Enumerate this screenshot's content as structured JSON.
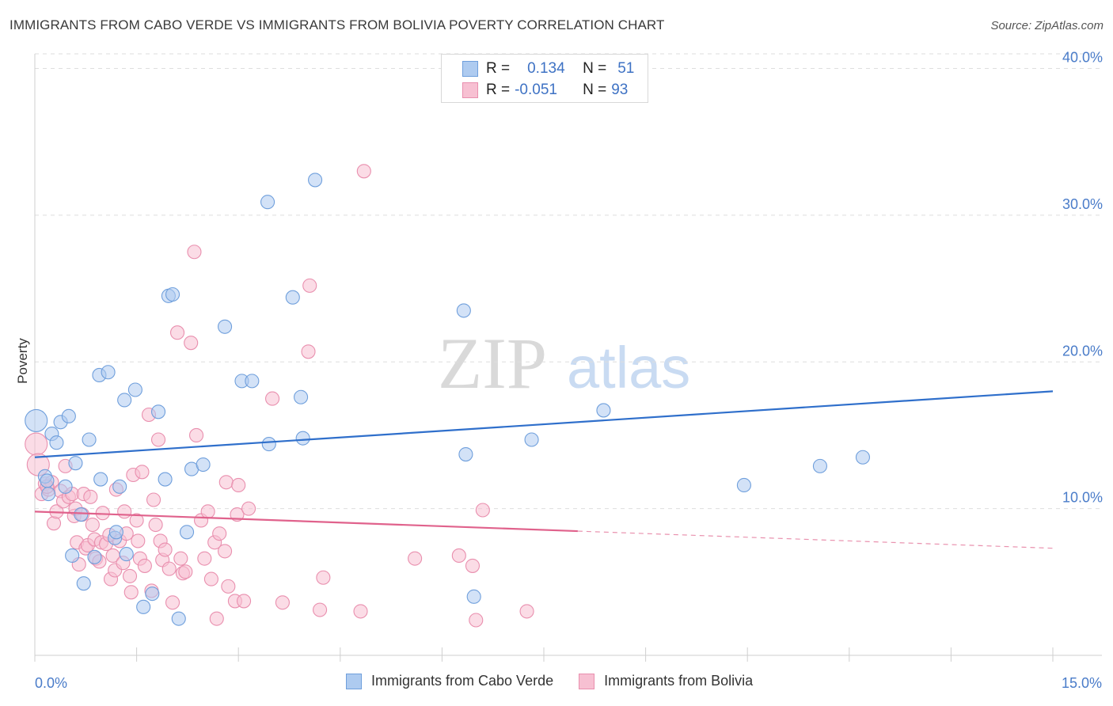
{
  "header": {
    "title": "IMMIGRANTS FROM CABO VERDE VS IMMIGRANTS FROM BOLIVIA POVERTY CORRELATION CHART",
    "source": "Source: ZipAtlas.com"
  },
  "watermark": {
    "zip": "ZIP",
    "atlas": "atlas"
  },
  "stats_legend": [
    {
      "r_label": "R =",
      "r_value": "0.134",
      "n_label": "N =",
      "n_value": "51"
    },
    {
      "r_label": "R =",
      "r_value": "-0.051",
      "n_label": "N =",
      "n_value": "93"
    }
  ],
  "colors": {
    "blue_fill": "#aecbf0",
    "blue_stroke": "#6f9fdc",
    "blue_line": "#2f6fcb",
    "pink_fill": "#f7c0d2",
    "pink_stroke": "#e98fae",
    "pink_line": "#e0628c",
    "axis_text": "#4a7cc9"
  },
  "chart_data": {
    "type": "scatter",
    "title": "IMMIGRANTS FROM CABO VERDE VS IMMIGRANTS FROM BOLIVIA POVERTY CORRELATION CHART",
    "xlabel": "",
    "ylabel": "Poverty",
    "xlim": [
      0,
      15
    ],
    "ylim": [
      0,
      41
    ],
    "x_ticks": [
      "0.0%",
      "15.0%"
    ],
    "y_ticks": [
      {
        "value": 10,
        "label": "10.0%"
      },
      {
        "value": 20,
        "label": "20.0%"
      },
      {
        "value": 30,
        "label": "30.0%"
      },
      {
        "value": 40,
        "label": "40.0%"
      }
    ],
    "grid": true,
    "legend_position": "bottom",
    "series": [
      {
        "name": "Immigrants from Cabo Verde",
        "color": "#6f9fdc",
        "trend": {
          "x": [
            0,
            15
          ],
          "y": [
            13.5,
            18.0
          ],
          "dashed_from": null
        },
        "points": [
          [
            0.02,
            16.0
          ],
          [
            0.15,
            12.2
          ],
          [
            0.18,
            11.9
          ],
          [
            0.2,
            11.0
          ],
          [
            0.25,
            15.1
          ],
          [
            0.32,
            14.5
          ],
          [
            0.38,
            15.9
          ],
          [
            0.45,
            11.5
          ],
          [
            0.5,
            16.3
          ],
          [
            0.55,
            6.8
          ],
          [
            0.6,
            13.1
          ],
          [
            0.68,
            9.6
          ],
          [
            0.72,
            4.9
          ],
          [
            0.8,
            14.7
          ],
          [
            0.88,
            6.7
          ],
          [
            0.95,
            19.1
          ],
          [
            0.97,
            12.0
          ],
          [
            1.08,
            19.3
          ],
          [
            1.18,
            8.0
          ],
          [
            1.2,
            8.4
          ],
          [
            1.25,
            11.5
          ],
          [
            1.32,
            17.4
          ],
          [
            1.35,
            6.9
          ],
          [
            1.48,
            18.1
          ],
          [
            1.6,
            3.3
          ],
          [
            1.73,
            4.2
          ],
          [
            1.82,
            16.6
          ],
          [
            1.92,
            12.0
          ],
          [
            1.97,
            24.5
          ],
          [
            2.03,
            24.6
          ],
          [
            2.12,
            2.5
          ],
          [
            2.24,
            8.4
          ],
          [
            2.31,
            12.7
          ],
          [
            2.48,
            13.0
          ],
          [
            2.8,
            22.4
          ],
          [
            3.05,
            18.7
          ],
          [
            3.2,
            18.7
          ],
          [
            3.43,
            30.9
          ],
          [
            3.45,
            14.4
          ],
          [
            3.8,
            24.4
          ],
          [
            3.92,
            17.6
          ],
          [
            3.95,
            14.8
          ],
          [
            4.13,
            32.4
          ],
          [
            6.32,
            23.5
          ],
          [
            6.35,
            13.7
          ],
          [
            6.47,
            4.0
          ],
          [
            7.32,
            14.7
          ],
          [
            8.38,
            16.7
          ],
          [
            10.45,
            11.6
          ],
          [
            11.57,
            12.9
          ],
          [
            12.2,
            13.5
          ]
        ]
      },
      {
        "name": "Immigrants from Bolivia",
        "color": "#e98fae",
        "trend": {
          "x": [
            0,
            15
          ],
          "y": [
            9.8,
            7.3
          ],
          "dashed_from": 8.0
        },
        "points": [
          [
            0.02,
            14.4
          ],
          [
            0.05,
            13.0
          ],
          [
            0.1,
            11.0
          ],
          [
            0.15,
            11.7
          ],
          [
            0.2,
            11.3
          ],
          [
            0.25,
            11.8
          ],
          [
            0.28,
            9.0
          ],
          [
            0.32,
            9.8
          ],
          [
            0.38,
            11.2
          ],
          [
            0.42,
            10.5
          ],
          [
            0.45,
            12.9
          ],
          [
            0.5,
            10.8
          ],
          [
            0.55,
            11.0
          ],
          [
            0.58,
            9.5
          ],
          [
            0.6,
            10.0
          ],
          [
            0.62,
            7.7
          ],
          [
            0.65,
            6.2
          ],
          [
            0.7,
            9.6
          ],
          [
            0.72,
            11.0
          ],
          [
            0.75,
            7.3
          ],
          [
            0.78,
            7.5
          ],
          [
            0.82,
            10.8
          ],
          [
            0.85,
            8.9
          ],
          [
            0.88,
            7.9
          ],
          [
            0.9,
            6.6
          ],
          [
            0.95,
            6.4
          ],
          [
            0.98,
            7.7
          ],
          [
            1.0,
            9.7
          ],
          [
            1.05,
            7.6
          ],
          [
            1.1,
            8.2
          ],
          [
            1.12,
            5.2
          ],
          [
            1.15,
            6.8
          ],
          [
            1.18,
            5.8
          ],
          [
            1.2,
            11.3
          ],
          [
            1.25,
            7.8
          ],
          [
            1.3,
            6.3
          ],
          [
            1.32,
            9.8
          ],
          [
            1.35,
            8.3
          ],
          [
            1.4,
            5.4
          ],
          [
            1.42,
            4.3
          ],
          [
            1.45,
            12.3
          ],
          [
            1.5,
            9.2
          ],
          [
            1.52,
            7.8
          ],
          [
            1.55,
            6.6
          ],
          [
            1.58,
            12.5
          ],
          [
            1.62,
            6.1
          ],
          [
            1.68,
            16.4
          ],
          [
            1.72,
            4.4
          ],
          [
            1.75,
            10.6
          ],
          [
            1.78,
            8.9
          ],
          [
            1.82,
            14.7
          ],
          [
            1.85,
            7.8
          ],
          [
            1.88,
            6.5
          ],
          [
            1.92,
            7.2
          ],
          [
            1.98,
            5.9
          ],
          [
            2.03,
            3.6
          ],
          [
            2.1,
            22.0
          ],
          [
            2.15,
            6.6
          ],
          [
            2.18,
            5.6
          ],
          [
            2.22,
            5.7
          ],
          [
            2.3,
            21.3
          ],
          [
            2.35,
            27.5
          ],
          [
            2.38,
            15.0
          ],
          [
            2.45,
            9.2
          ],
          [
            2.5,
            6.6
          ],
          [
            2.55,
            9.8
          ],
          [
            2.6,
            5.2
          ],
          [
            2.65,
            7.7
          ],
          [
            2.68,
            2.5
          ],
          [
            2.72,
            8.3
          ],
          [
            2.8,
            7.1
          ],
          [
            2.82,
            11.8
          ],
          [
            2.85,
            4.7
          ],
          [
            2.95,
            3.7
          ],
          [
            2.98,
            9.6
          ],
          [
            3.0,
            11.6
          ],
          [
            3.08,
            3.7
          ],
          [
            3.15,
            10.0
          ],
          [
            3.5,
            17.5
          ],
          [
            3.65,
            3.6
          ],
          [
            4.03,
            20.7
          ],
          [
            4.05,
            25.2
          ],
          [
            4.2,
            3.1
          ],
          [
            4.25,
            5.3
          ],
          [
            4.8,
            3.0
          ],
          [
            4.85,
            33.0
          ],
          [
            5.6,
            6.6
          ],
          [
            6.25,
            6.8
          ],
          [
            6.45,
            6.1
          ],
          [
            6.5,
            2.4
          ],
          [
            6.6,
            9.9
          ],
          [
            7.25,
            3.0
          ],
          [
            0.18,
            11.5
          ]
        ]
      }
    ]
  },
  "bottom_legend": {
    "items": [
      "Immigrants from Cabo Verde",
      "Immigrants from Bolivia"
    ]
  }
}
